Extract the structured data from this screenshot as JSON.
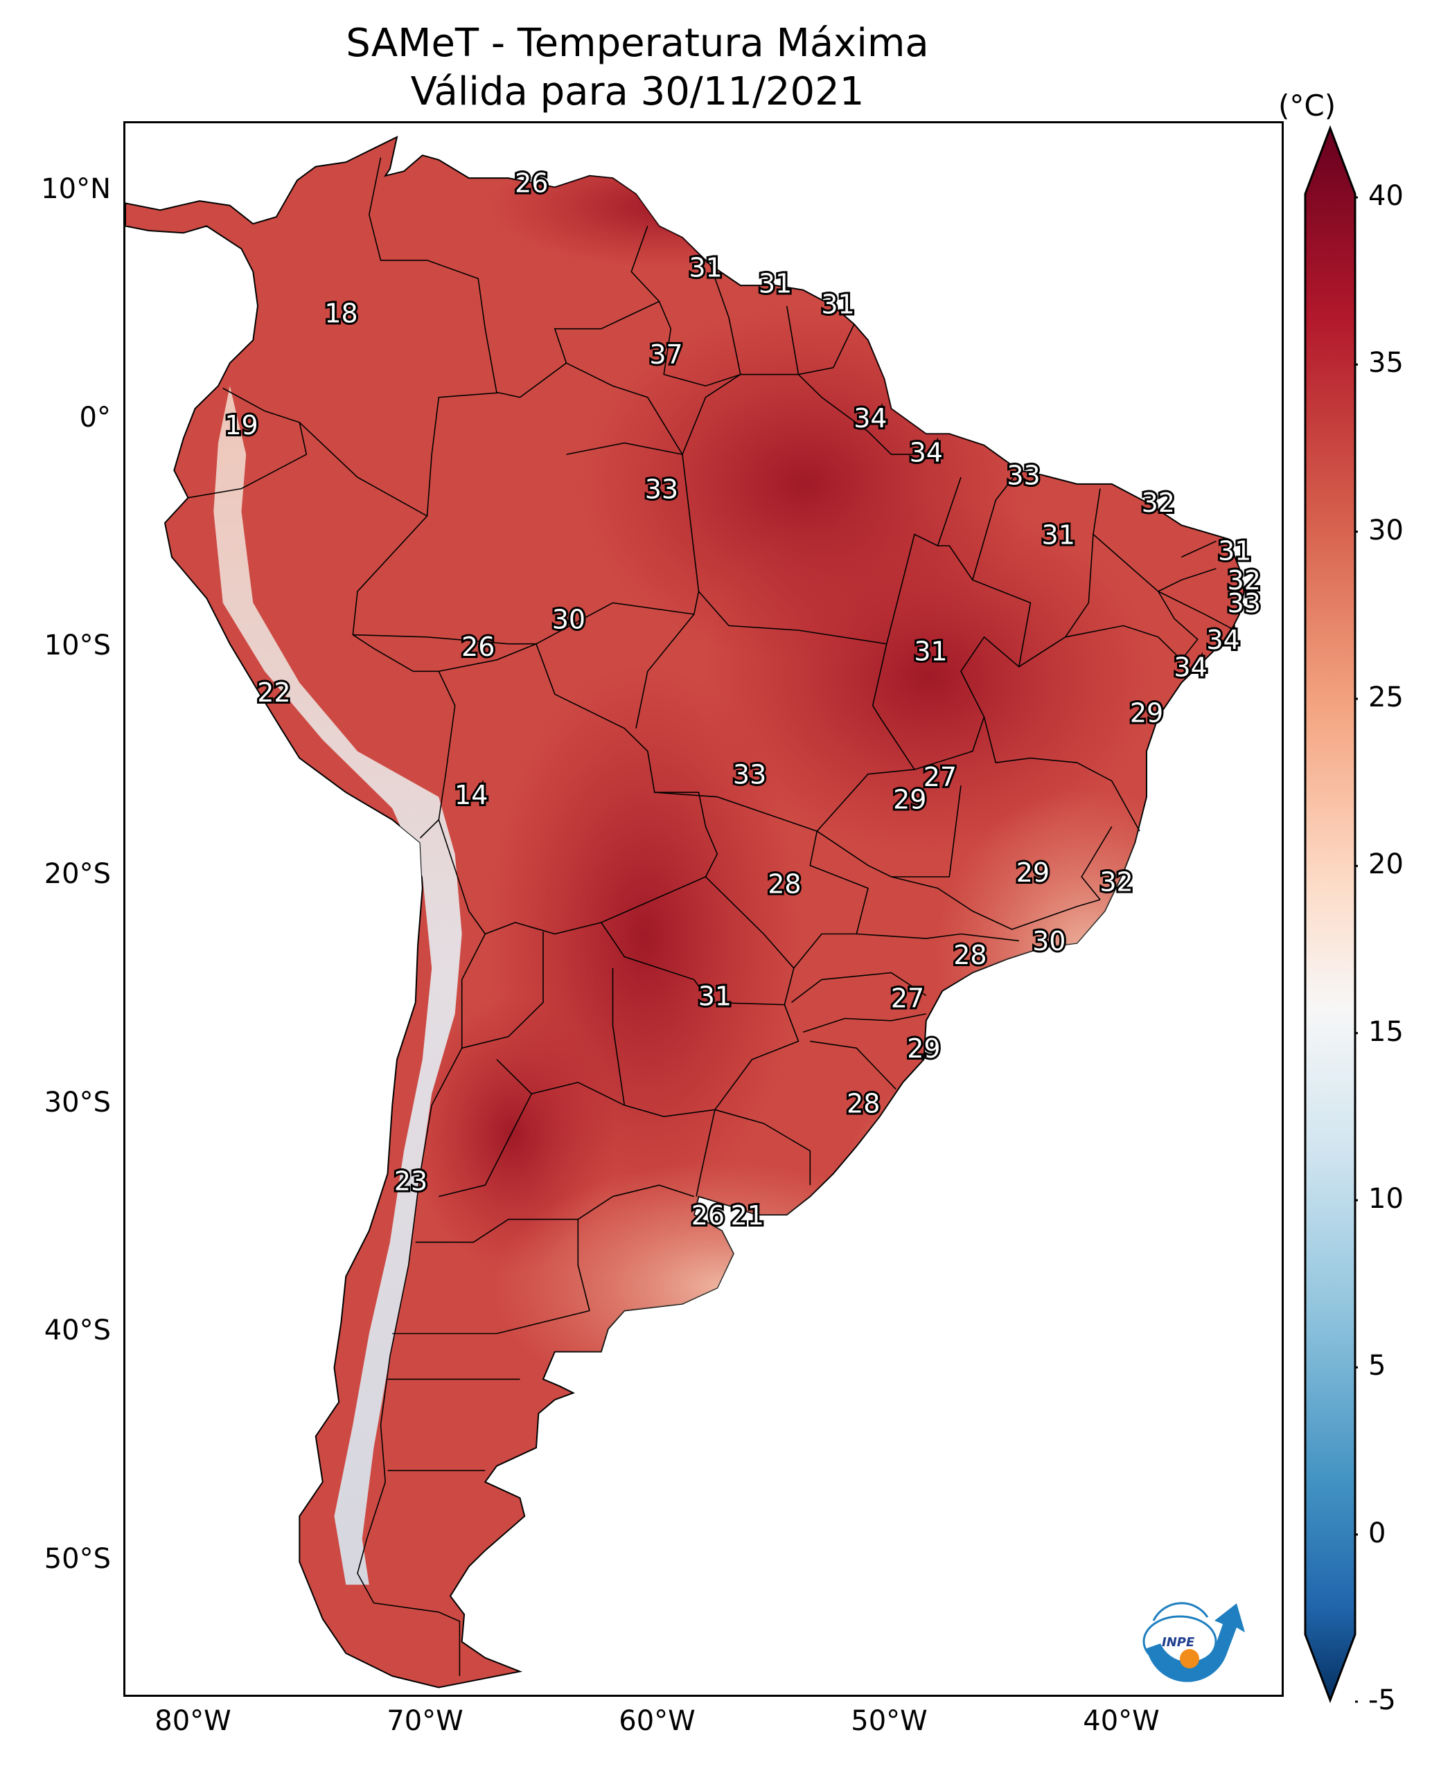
{
  "title": {
    "line1": "SAMeT - Temperatura Máxima",
    "line2": "Válida para 30/11/2021"
  },
  "colorbar": {
    "unit": "(°C)",
    "min": -5,
    "max": 40,
    "ticks": [
      "40",
      "35",
      "30",
      "25",
      "20",
      "15",
      "10",
      "5",
      "0",
      "-5"
    ]
  },
  "axes": {
    "lat_ticks": [
      "10°N",
      "0°",
      "10°S",
      "20°S",
      "30°S",
      "40°S",
      "50°S"
    ],
    "lon_ticks": [
      "80°W",
      "70°W",
      "60°W",
      "50°W",
      "40°W"
    ]
  },
  "station_labels": [
    {
      "value": "26",
      "lon": -65.5,
      "lat": 10.3
    },
    {
      "value": "31",
      "lon": -58.0,
      "lat": 6.6
    },
    {
      "value": "31",
      "lon": -55.0,
      "lat": 5.9
    },
    {
      "value": "31",
      "lon": -52.3,
      "lat": 5.0
    },
    {
      "value": "18",
      "lon": -73.7,
      "lat": 4.6
    },
    {
      "value": "37",
      "lon": -59.7,
      "lat": 2.8
    },
    {
      "value": "19",
      "lon": -78.0,
      "lat": -0.3
    },
    {
      "value": "34",
      "lon": -50.9,
      "lat": 0.0
    },
    {
      "value": "34",
      "lon": -48.5,
      "lat": -1.5
    },
    {
      "value": "33",
      "lon": -59.9,
      "lat": -3.1
    },
    {
      "value": "33",
      "lon": -44.3,
      "lat": -2.5
    },
    {
      "value": "32",
      "lon": -38.5,
      "lat": -3.7
    },
    {
      "value": "31",
      "lon": -42.8,
      "lat": -5.1
    },
    {
      "value": "31",
      "lon": -35.2,
      "lat": -5.8
    },
    {
      "value": "32",
      "lon": -34.8,
      "lat": -7.1
    },
    {
      "value": "33",
      "lon": -34.8,
      "lat": -8.1
    },
    {
      "value": "30",
      "lon": -63.9,
      "lat": -8.8
    },
    {
      "value": "26",
      "lon": -67.8,
      "lat": -10.0
    },
    {
      "value": "31",
      "lon": -48.3,
      "lat": -10.2
    },
    {
      "value": "34",
      "lon": -35.7,
      "lat": -9.7
    },
    {
      "value": "34",
      "lon": -37.1,
      "lat": -10.9
    },
    {
      "value": "22",
      "lon": -76.6,
      "lat": -12.0
    },
    {
      "value": "29",
      "lon": -39.0,
      "lat": -12.9
    },
    {
      "value": "33",
      "lon": -56.1,
      "lat": -15.6
    },
    {
      "value": "14",
      "lon": -68.1,
      "lat": -16.5
    },
    {
      "value": "27",
      "lon": -47.9,
      "lat": -15.7
    },
    {
      "value": "29",
      "lon": -49.2,
      "lat": -16.7
    },
    {
      "value": "28",
      "lon": -54.6,
      "lat": -20.4
    },
    {
      "value": "29",
      "lon": -43.9,
      "lat": -19.9
    },
    {
      "value": "32",
      "lon": -40.3,
      "lat": -20.3
    },
    {
      "value": "30",
      "lon": -43.2,
      "lat": -22.9
    },
    {
      "value": "28",
      "lon": -46.6,
      "lat": -23.5
    },
    {
      "value": "31",
      "lon": -57.6,
      "lat": -25.3
    },
    {
      "value": "27",
      "lon": -49.3,
      "lat": -25.4
    },
    {
      "value": "29",
      "lon": -48.6,
      "lat": -27.6
    },
    {
      "value": "28",
      "lon": -51.2,
      "lat": -30.0
    },
    {
      "value": "23",
      "lon": -70.7,
      "lat": -33.4
    },
    {
      "value": "26",
      "lon": -57.9,
      "lat": -34.9
    },
    {
      "value": "21",
      "lon": -56.2,
      "lat": -34.9
    }
  ],
  "logo": {
    "text": "INPE"
  }
}
